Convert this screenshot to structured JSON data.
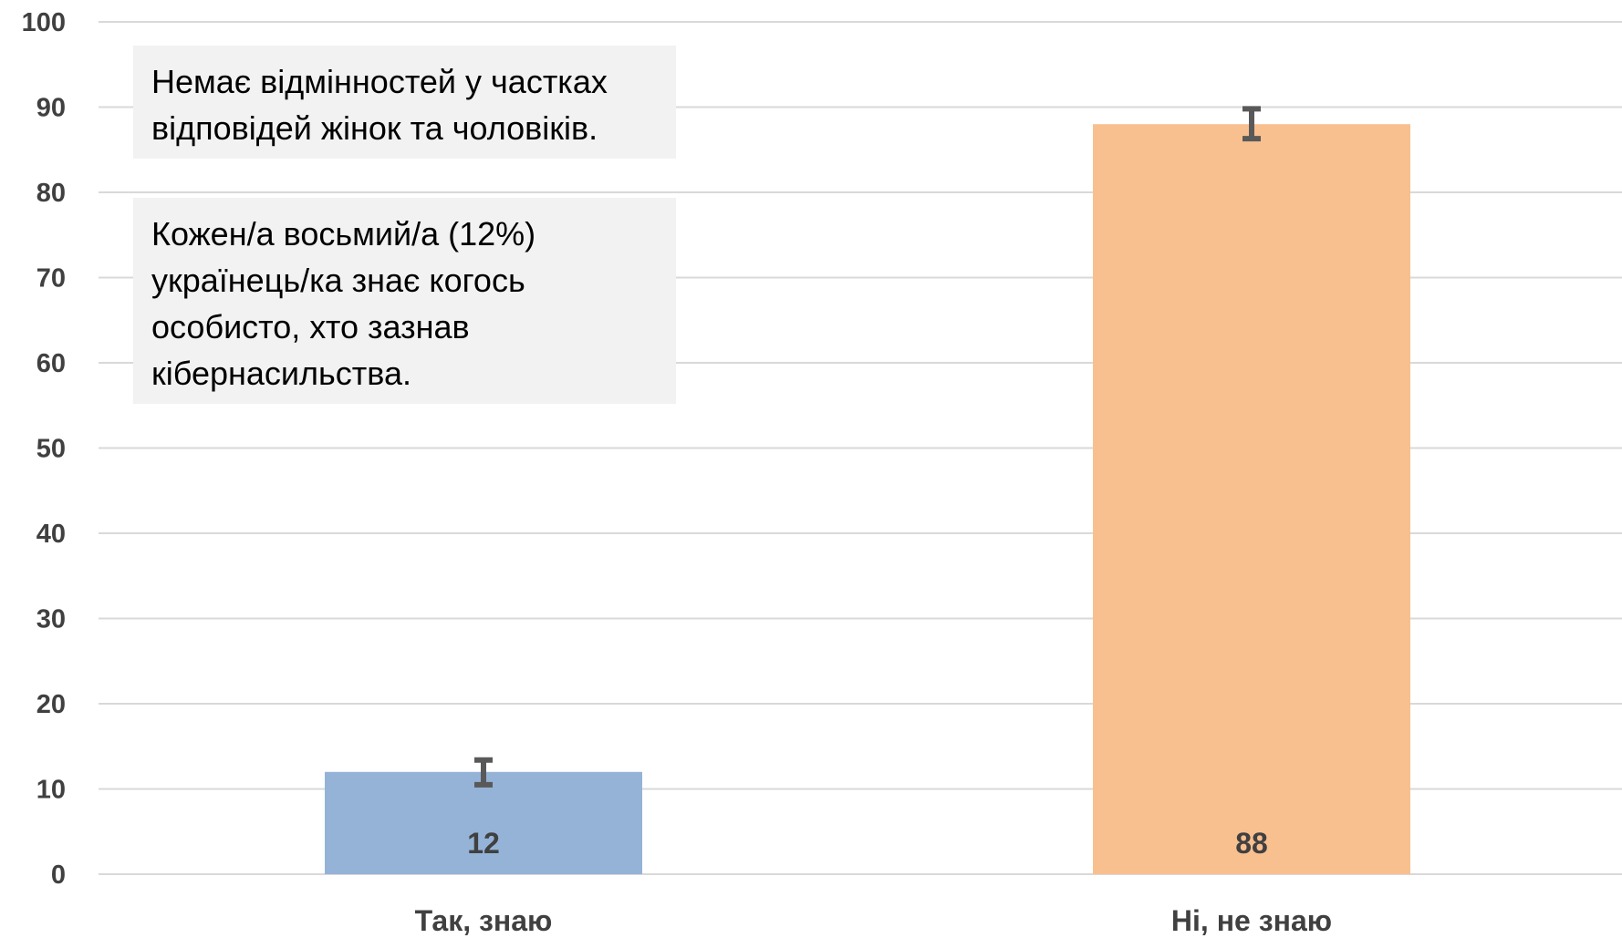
{
  "chart_data": {
    "type": "bar",
    "categories": [
      "Так, знаю",
      "Ні, не знаю"
    ],
    "values": [
      12,
      88
    ],
    "data_labels": [
      "12",
      "88"
    ],
    "error_bars": [
      {
        "low": 10.5,
        "high": 13.4
      },
      {
        "low": 86.3,
        "high": 89.8
      }
    ],
    "bar_colors": [
      "#95b3d7",
      "#f9c08f"
    ],
    "error_bar_color": "#595959",
    "ylim": [
      0,
      100
    ],
    "yticks": [
      0,
      10,
      20,
      30,
      40,
      50,
      60,
      70,
      80,
      90,
      100
    ],
    "ytick_labels": [
      "0",
      "10",
      "20",
      "30",
      "40",
      "50",
      "60",
      "70",
      "80",
      "90",
      "100"
    ],
    "grid": true,
    "grid_color": "#d9d9d9",
    "legend": "none",
    "title": "",
    "xlabel": "",
    "ylabel": ""
  },
  "annotations": {
    "note_1": {
      "lines": [
        "Немає відмінностей у частках",
        "відповідей жінок та чоловіків."
      ]
    },
    "note_2": {
      "lines": [
        "Кожен/а восьмий/а (12%)",
        "українець/ка знає когось",
        "особисто, хто зазнав",
        "кібернасильства."
      ]
    }
  }
}
